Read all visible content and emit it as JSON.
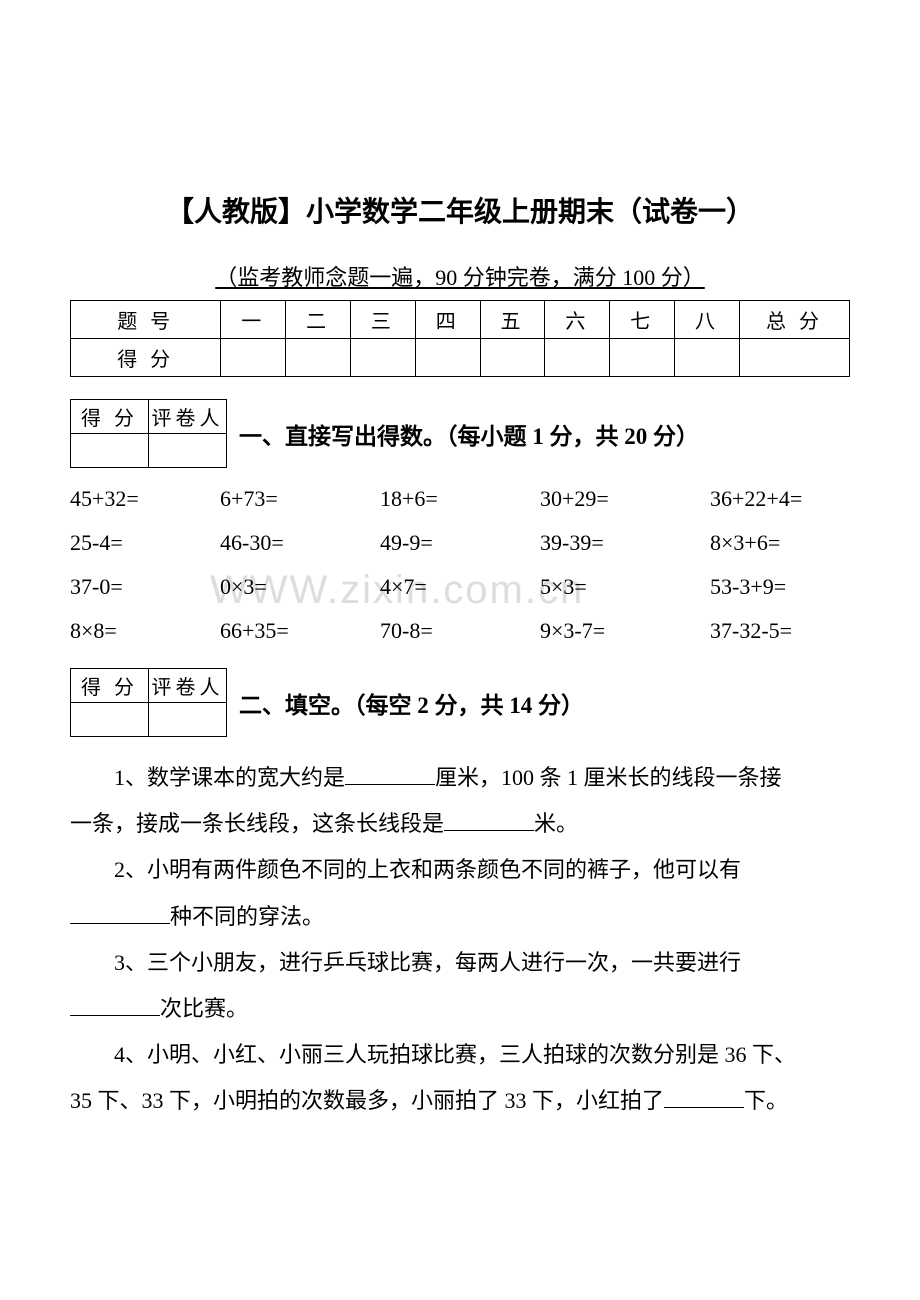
{
  "title": "【人教版】小学数学二年级上册期末（试卷一）",
  "subtitle": "（监考教师念题一遍，90 分钟完卷，满分 100 分）",
  "score_table": {
    "row1": [
      "题 号",
      "一",
      "二",
      "三",
      "四",
      "五",
      "六",
      "七",
      "八",
      "总  分"
    ],
    "row2_label": "得 分"
  },
  "mini": {
    "c1": "得 分",
    "c2": "评卷人"
  },
  "section1": {
    "heading": "一、直接写出得数。（每小题 1 分，共 20 分）",
    "rows": [
      [
        "45+32=",
        "6+73=",
        "18+6=",
        "30+29=",
        "36+22+4="
      ],
      [
        "25-4=",
        "46-30=",
        "49-9=",
        "39-39=",
        "8×3+6="
      ],
      [
        "37-0=",
        "0×3=",
        "4×7=",
        "5×3=",
        "53-3+9="
      ],
      [
        "8×8=",
        "66+35=",
        "70-8=",
        "9×3-7=",
        "37-32-5="
      ]
    ]
  },
  "section2": {
    "heading": "二、填空。（每空 2 分，共 14 分）",
    "q1a": "1、数学课本的宽大约是",
    "q1b": "厘米，100 条 1 厘米长的线段一条接",
    "q1c": "一条，接成一条长线段，这条长线段是",
    "q1d": "米。",
    "q2a": "2、小明有两件颜色不同的上衣和两条颜色不同的裤子，他可以有",
    "q2b": "种不同的穿法。",
    "q3a": "3、三个小朋友，进行乒乓球比赛，每两人进行一次，一共要进行",
    "q3b": "次比赛。",
    "q4a": "4、小明、小红、小丽三人玩拍球比赛，三人拍球的次数分别是 36 下、",
    "q4b": "35 下、33 下，小明拍的次数最多，小丽拍了 33 下，小红拍了",
    "q4c": "下。"
  },
  "watermark": "WWW.zixin.com.cn"
}
